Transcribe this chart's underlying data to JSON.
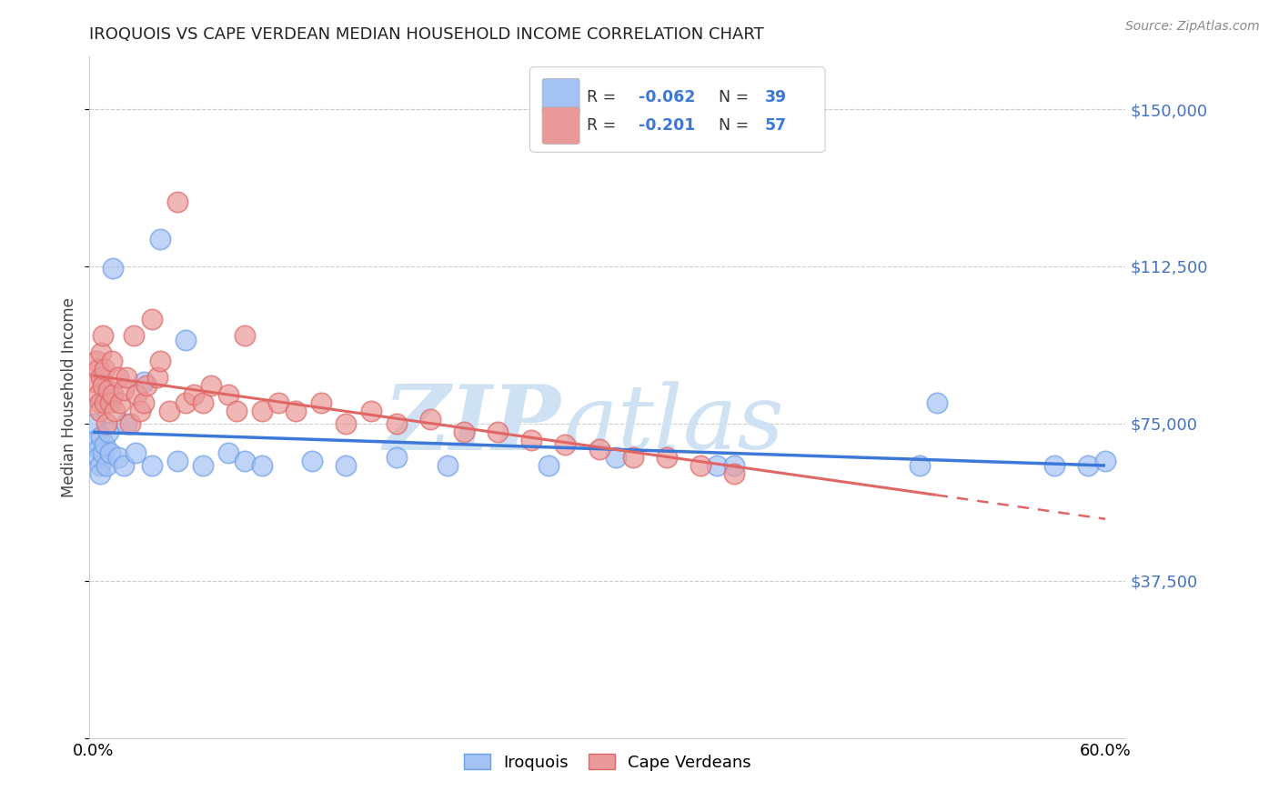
{
  "title": "IROQUOIS VS CAPE VERDEAN MEDIAN HOUSEHOLD INCOME CORRELATION CHART",
  "source": "Source: ZipAtlas.com",
  "ylabel": "Median Household Income",
  "ylim": [
    0,
    162500
  ],
  "xlim": [
    -0.002,
    0.612
  ],
  "color_iroquois": "#a4c2f4",
  "color_iroquois_edge": "#6d9eeb",
  "color_cape_verdean": "#ea9999",
  "color_cape_verdean_edge": "#e06666",
  "color_iroquois_line": "#3c78d8",
  "color_cape_verdean_line": "#e06666",
  "watermark_zip_color": "#cfe2f3",
  "watermark_atlas_color": "#cfe2f3",
  "iroquois_line_y0": 72000,
  "iroquois_line_y1": 68000,
  "cape_line_y0": 80000,
  "cape_line_y1": 55000,
  "cape_line_solid_end": 0.5,
  "iroquois_x": [
    0.001,
    0.002,
    0.003,
    0.003,
    0.004,
    0.004,
    0.005,
    0.006,
    0.007,
    0.008,
    0.009,
    0.01,
    0.012,
    0.015,
    0.018,
    0.02,
    0.025,
    0.03,
    0.035,
    0.04,
    0.05,
    0.055,
    0.065,
    0.08,
    0.09,
    0.1,
    0.13,
    0.15,
    0.18,
    0.21,
    0.27,
    0.31,
    0.37,
    0.38,
    0.49,
    0.5,
    0.57,
    0.59,
    0.6
  ],
  "iroquois_y": [
    75000,
    71000,
    69000,
    67000,
    65000,
    63000,
    72000,
    68000,
    70000,
    65000,
    73000,
    68000,
    112000,
    67000,
    65000,
    75000,
    68000,
    85000,
    65000,
    119000,
    66000,
    95000,
    65000,
    68000,
    66000,
    65000,
    66000,
    65000,
    67000,
    65000,
    65000,
    67000,
    65000,
    65000,
    65000,
    80000,
    65000,
    65000,
    66000
  ],
  "cape_verdean_x": [
    0.001,
    0.002,
    0.003,
    0.003,
    0.004,
    0.004,
    0.005,
    0.005,
    0.006,
    0.006,
    0.007,
    0.007,
    0.008,
    0.009,
    0.01,
    0.011,
    0.012,
    0.013,
    0.015,
    0.016,
    0.018,
    0.02,
    0.022,
    0.024,
    0.026,
    0.028,
    0.03,
    0.032,
    0.035,
    0.038,
    0.04,
    0.045,
    0.05,
    0.055,
    0.06,
    0.065,
    0.07,
    0.08,
    0.085,
    0.09,
    0.1,
    0.11,
    0.12,
    0.135,
    0.15,
    0.165,
    0.18,
    0.2,
    0.22,
    0.24,
    0.26,
    0.28,
    0.3,
    0.32,
    0.34,
    0.36,
    0.38
  ],
  "cape_verdean_y": [
    85000,
    90000,
    88000,
    82000,
    80000,
    78000,
    86000,
    92000,
    84000,
    96000,
    80000,
    88000,
    75000,
    83000,
    80000,
    90000,
    82000,
    78000,
    86000,
    80000,
    83000,
    86000,
    75000,
    96000,
    82000,
    78000,
    80000,
    84000,
    100000,
    86000,
    90000,
    78000,
    128000,
    80000,
    82000,
    80000,
    84000,
    82000,
    78000,
    96000,
    78000,
    80000,
    78000,
    80000,
    75000,
    78000,
    75000,
    76000,
    73000,
    73000,
    71000,
    70000,
    69000,
    67000,
    67000,
    65000,
    63000
  ]
}
